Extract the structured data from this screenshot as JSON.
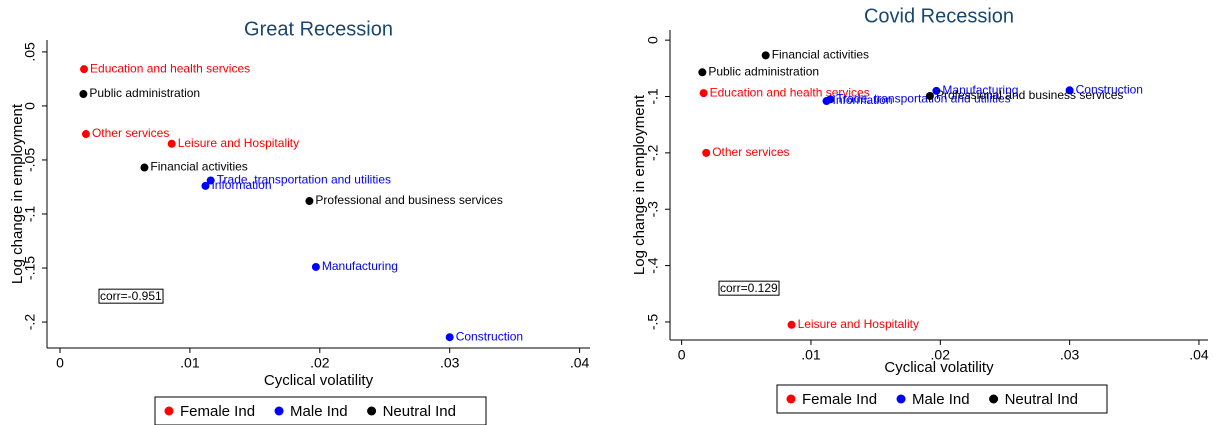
{
  "chart_data": [
    {
      "type": "scatter",
      "title": "Great Recession",
      "x_label": "Cyclical volatility",
      "y_label": "Log change in employment",
      "annotation": "corr=-0.951",
      "xlim": [
        -0.001,
        0.0408
      ],
      "ylim": [
        -0.224,
        0.061
      ],
      "xticks": [
        0,
        {
          "value": 0.01,
          "label": ".01"
        },
        {
          "value": 0.02,
          "label": ".02"
        },
        {
          "value": 0.03,
          "label": ".03"
        },
        {
          "value": 0.04,
          "label": ".04"
        }
      ],
      "yticks": [
        {
          "value": 0.05,
          "label": ".05"
        },
        0,
        {
          "value": -0.05,
          "label": "-.05"
        },
        {
          "value": -0.1,
          "label": "-.1"
        },
        {
          "value": -0.15,
          "label": "-.15"
        },
        {
          "value": -0.2,
          "label": "-.2"
        }
      ],
      "series": [
        {
          "name": "Female Ind",
          "color": "#ff0000",
          "labels": [
            "Education and health services",
            "Other services",
            "Leisure and Hospitality"
          ],
          "x": [
            0.00185,
            0.002,
            0.0086
          ],
          "values": [
            0.034,
            -0.026,
            -0.035
          ]
        },
        {
          "name": "Male Ind",
          "color": "#0000ff",
          "labels": [
            "Trade, transportation and utilities",
            "Information",
            "Manufacturing",
            "Construction"
          ],
          "x": [
            0.0116,
            0.0112,
            0.0197,
            0.03
          ],
          "values": [
            -0.069,
            -0.074,
            -0.149,
            -0.214
          ]
        },
        {
          "name": "Neutral Ind",
          "color": "#000000",
          "labels": [
            "Public administration",
            "Financial activities",
            "Professional and business services"
          ],
          "x": [
            0.0018,
            0.0065,
            0.0192
          ],
          "values": [
            0.011,
            -0.057,
            -0.088
          ]
        }
      ]
    },
    {
      "type": "scatter",
      "title": "Covid Recession",
      "x_label": "Cyclical volatility",
      "y_label": "Log change in employment",
      "annotation": "corr=0.129",
      "xlim": [
        -0.0009,
        0.0407
      ],
      "ylim": [
        -0.532,
        0.018
      ],
      "xticks": [
        0,
        {
          "value": 0.01,
          "label": ".01"
        },
        {
          "value": 0.02,
          "label": ".02"
        },
        {
          "value": 0.03,
          "label": ".03"
        },
        {
          "value": 0.04,
          "label": ".04"
        }
      ],
      "yticks": [
        0,
        {
          "value": -0.1,
          "label": "-.1"
        },
        {
          "value": -0.2,
          "label": "-.2"
        },
        {
          "value": -0.3,
          "label": "-.3"
        },
        {
          "value": -0.4,
          "label": "-.4"
        },
        {
          "value": -0.5,
          "label": "-.5"
        }
      ],
      "series": [
        {
          "name": "Female Ind",
          "color": "#ff0000",
          "labels": [
            "Education and health services",
            "Other services",
            "Leisure and Hospitality"
          ],
          "x": [
            0.0017,
            0.0019,
            0.0085
          ],
          "values": [
            -0.094,
            -0.2,
            -0.505
          ]
        },
        {
          "name": "Male Ind",
          "color": "#0000ff",
          "labels": [
            "Trade, transportation and utilities",
            "Information",
            "Manufacturing",
            "Construction"
          ],
          "x": [
            0.0115,
            0.0112,
            0.0197,
            0.03
          ],
          "values": [
            -0.105,
            -0.108,
            -0.09,
            -0.089
          ]
        },
        {
          "name": "Neutral Ind",
          "color": "#000000",
          "labels": [
            "Financial activities",
            "Public administration",
            "Professional and business services"
          ],
          "x": [
            0.0065,
            0.0016,
            0.0192
          ],
          "values": [
            -0.027,
            -0.057,
            -0.099
          ]
        }
      ]
    }
  ]
}
